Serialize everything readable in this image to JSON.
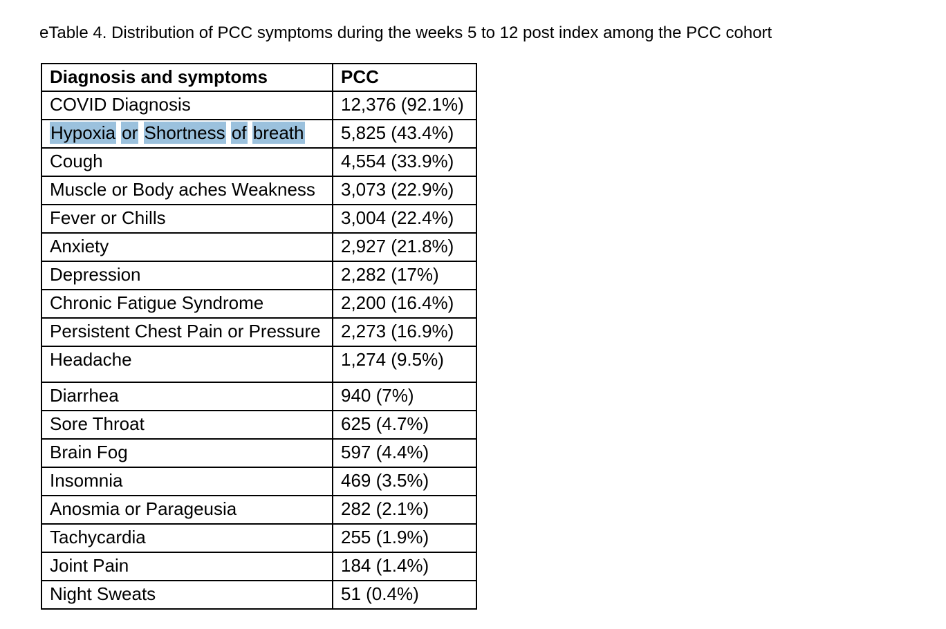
{
  "title": "eTable 4. Distribution of PCC symptoms during the weeks 5 to 12 post index among the PCC cohort",
  "table": {
    "columns": [
      "Diagnosis and symptoms",
      "PCC"
    ],
    "highlight_color": "#9bc1dd",
    "rows": [
      {
        "symptom": "COVID Diagnosis",
        "pcc": "12,376 (92.1%)"
      },
      {
        "symptom": "Hypoxia or Shortness of breath",
        "pcc": "5,825 (43.4%)",
        "highlight_words": true
      },
      {
        "symptom": "Cough",
        "pcc": "4,554 (33.9%)"
      },
      {
        "symptom": "Muscle or Body aches Weakness",
        "pcc": "3,073 (22.9%)"
      },
      {
        "symptom": "Fever or Chills",
        "pcc": "3,004 (22.4%)"
      },
      {
        "symptom": "Anxiety",
        "pcc": "2,927 (21.8%)"
      },
      {
        "symptom": "Depression",
        "pcc": "2,282 (17%)"
      },
      {
        "symptom": "Chronic Fatigue Syndrome",
        "pcc": "2,200 (16.4%)"
      },
      {
        "symptom": "Persistent Chest Pain or Pressure",
        "pcc": "2,273 (16.9%)"
      },
      {
        "symptom": "Headache",
        "pcc": "1,274 (9.5%)",
        "tall": true
      },
      {
        "symptom": "Diarrhea",
        "pcc": "940 (7%)"
      },
      {
        "symptom": "Sore Throat",
        "pcc": "625 (4.7%)"
      },
      {
        "symptom": "Brain Fog",
        "pcc": "597 (4.4%)"
      },
      {
        "symptom": "Insomnia",
        "pcc": "469 (3.5%)"
      },
      {
        "symptom": "Anosmia or Parageusia",
        "pcc": "282 (2.1%)"
      },
      {
        "symptom": "Tachycardia",
        "pcc": "255 (1.9%)"
      },
      {
        "symptom": "Joint Pain",
        "pcc": "184 (1.4%)"
      },
      {
        "symptom": "Night Sweats",
        "pcc": "51 (0.4%)"
      }
    ]
  }
}
